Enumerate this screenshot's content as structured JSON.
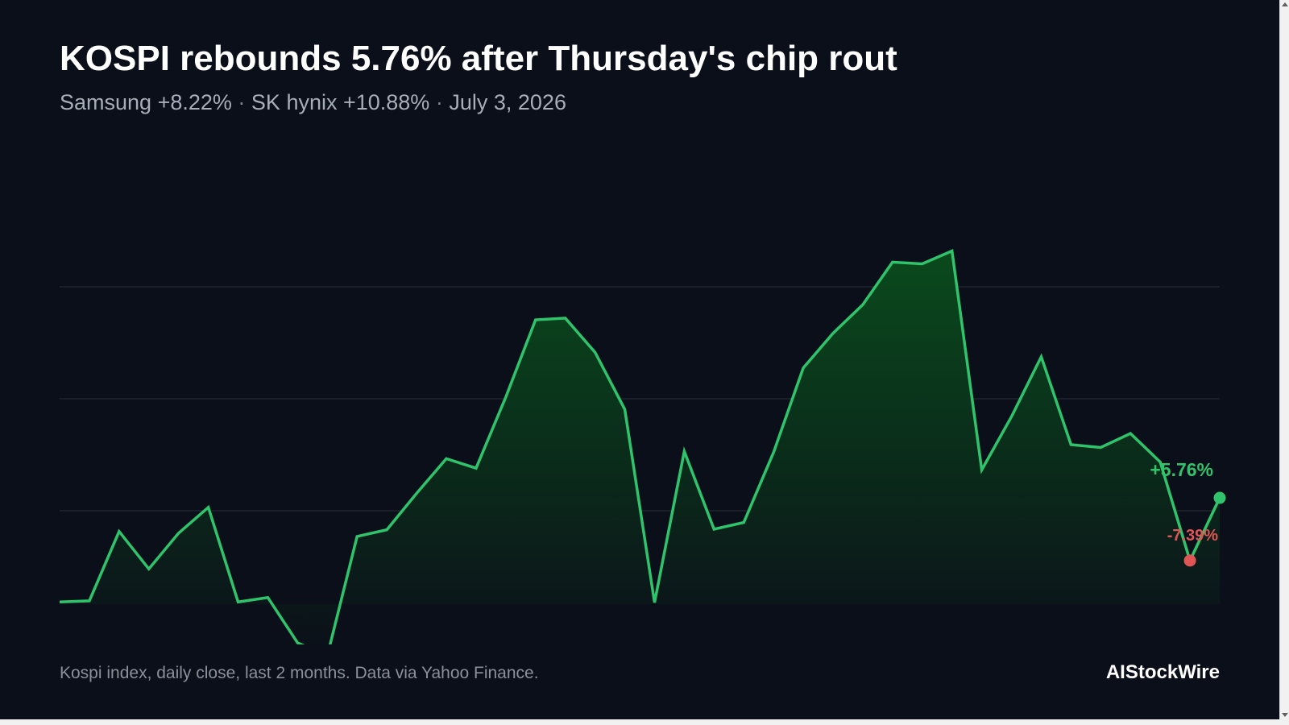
{
  "header": {
    "title": "KOSPI rebounds 5.76% after Thursday's chip rout",
    "subtitle_parts": [
      "Samsung +8.22%",
      "SK hynix +10.88%",
      "July 3, 2026"
    ],
    "separator": "·"
  },
  "footer": {
    "note": "Kospi index, daily close, last 2 months. Data via Yahoo Finance.",
    "brand": "AIStockWire"
  },
  "colors": {
    "background": "#0b0f19",
    "line": "#2fc46b",
    "area_top": "#0a4a1c",
    "grid": "#2a2f3a",
    "down": "#e05555",
    "up": "#2fc46b"
  },
  "chart_data": {
    "type": "area",
    "title": "",
    "xlabel": "",
    "ylabel": "",
    "grid": true,
    "legend": "none",
    "axis_labels_shown": false,
    "ylim": [
      0,
      1000
    ],
    "gridlines": [
      300,
      500,
      700
    ],
    "series": [
      {
        "values": [
          137,
          139,
          263,
          196,
          260,
          306,
          137,
          145,
          64,
          41,
          254,
          266,
          331,
          393,
          376,
          503,
          641,
          644,
          583,
          481,
          136,
          406,
          267,
          279,
          404,
          555,
          617,
          668,
          744,
          741,
          764,
          373,
          468,
          575,
          418,
          413,
          438,
          387,
          211,
          323
        ]
      }
    ],
    "annotations": [
      {
        "label": "+5.76%",
        "index": 39,
        "kind": "up"
      },
      {
        "label": "-7.39%",
        "index": 38,
        "kind": "down"
      }
    ]
  }
}
